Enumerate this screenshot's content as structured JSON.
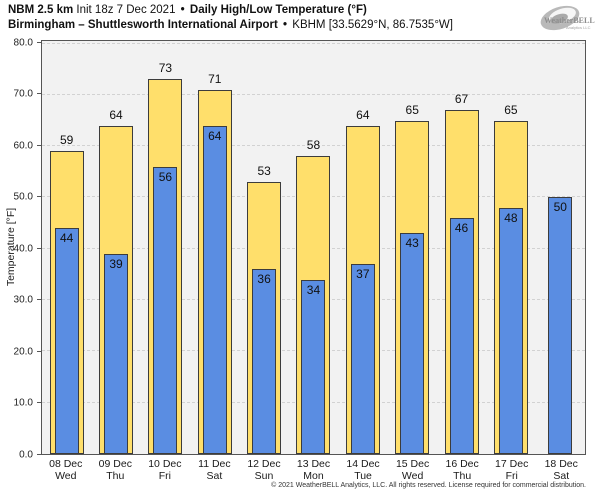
{
  "header": {
    "model": "NBM 2.5 km",
    "init": " Init 18z 7 Dec 2021 ",
    "bullet": "•",
    "product": "Daily High/Low Temperature (°F)",
    "location": "Birmingham – Shuttlesworth International Airport",
    "station": "KBHM [33.5629°N, 86.7535°W]"
  },
  "logo": {
    "name": "WeatherBELL",
    "text": "WeatherBELL",
    "subtext": "Analytics LLC"
  },
  "footer": {
    "copyright": "© 2021 WeatherBELL Analytics, LLC. All rights reserved. License required for commercial distribution."
  },
  "chart_data": {
    "type": "bar",
    "title": "NBM 2.5 km Daily High/Low Temperature (°F) — Birmingham – Shuttlesworth International Airport (KBHM)",
    "ylabel": "Temperature [°F]",
    "xlabel": "",
    "ylim": [
      0,
      80.5
    ],
    "ytick_step": 10,
    "ytick_labels": [
      "0.0",
      "10.0",
      "20.0",
      "30.0",
      "40.0",
      "50.0",
      "60.0",
      "70.0",
      "80.0"
    ],
    "grid": true,
    "legend": "none",
    "categories": [
      "08 Dec",
      "09 Dec",
      "10 Dec",
      "11 Dec",
      "12 Dec",
      "13 Dec",
      "14 Dec",
      "15 Dec",
      "16 Dec",
      "17 Dec",
      "18 Dec"
    ],
    "weekdays": [
      "Wed",
      "Thu",
      "Fri",
      "Sat",
      "Sun",
      "Mon",
      "Tue",
      "Wed",
      "Thu",
      "Fri",
      "Sat"
    ],
    "series": [
      {
        "name": "High",
        "color": "#ffdf6b",
        "values": [
          59,
          64,
          73,
          71,
          53,
          58,
          64,
          65,
          67,
          65,
          null
        ]
      },
      {
        "name": "Low",
        "color": "#5a8de2",
        "values": [
          44,
          39,
          56,
          64,
          36,
          34,
          37,
          43,
          46,
          48,
          50
        ]
      }
    ],
    "plot_bg": "#f2f2f2",
    "bar_border": "#3c3c3c"
  }
}
